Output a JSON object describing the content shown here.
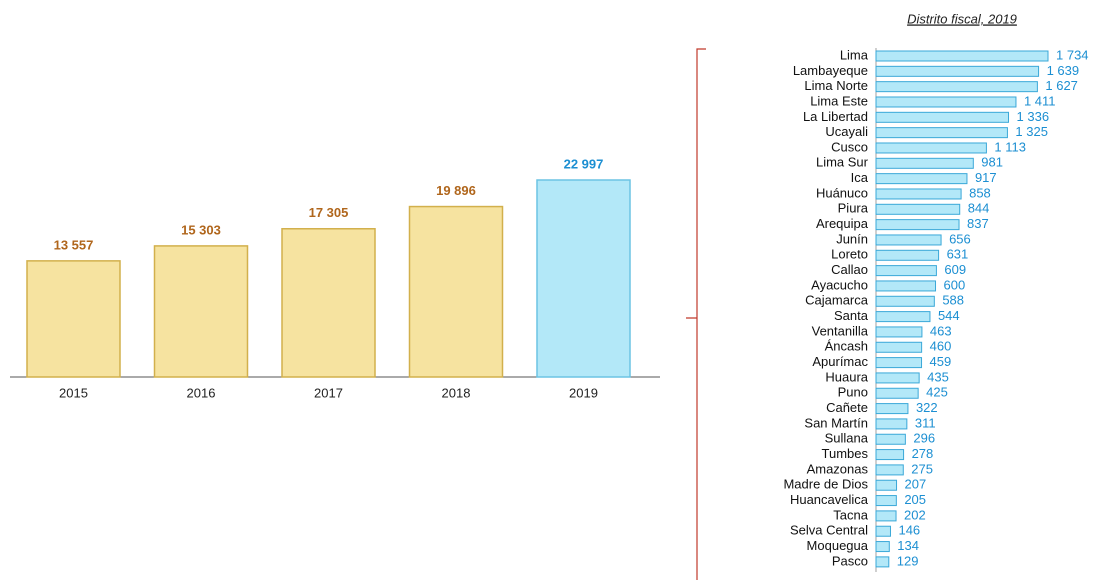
{
  "chart_data": [
    {
      "type": "bar",
      "categories": [
        "2015",
        "2016",
        "2017",
        "2018",
        "2019"
      ],
      "values": [
        13557,
        15303,
        17305,
        19896,
        22997
      ],
      "value_labels": [
        "13 557",
        "15 303",
        "17 305",
        "19 896",
        "22 997"
      ],
      "colors": [
        "#f6e3a0",
        "#f6e3a0",
        "#f6e3a0",
        "#f6e3a0",
        "#b3e8f8"
      ],
      "label_colors": [
        "#b0661c",
        "#b0661c",
        "#b0661c",
        "#b0661c",
        "#1c8fd2"
      ]
    },
    {
      "type": "hbar",
      "title": "Distrito fiscal, 2019",
      "categories": [
        "Lima",
        "Lambayeque",
        "Lima Norte",
        "Lima Este",
        "La Libertad",
        "Ucayali",
        "Cusco",
        "Lima Sur",
        "Ica",
        "Huánuco",
        "Piura",
        "Arequipa",
        "Junín",
        "Loreto",
        "Callao",
        "Ayacucho",
        "Cajamarca",
        "Santa",
        "Ventanilla",
        "Áncash",
        "Apurímac",
        "Huaura",
        "Puno",
        "Cañete",
        "San Martín",
        "Sullana",
        "Tumbes",
        "Amazonas",
        "Madre de Dios",
        "Huancavelica",
        "Tacna",
        "Selva Central",
        "Moquegua",
        "Pasco"
      ],
      "values": [
        1734,
        1639,
        1627,
        1411,
        1336,
        1325,
        1113,
        981,
        917,
        858,
        844,
        837,
        656,
        631,
        609,
        600,
        588,
        544,
        463,
        460,
        459,
        435,
        425,
        322,
        311,
        296,
        278,
        275,
        207,
        205,
        202,
        146,
        134,
        129
      ],
      "value_labels": [
        "1 734",
        "1 639",
        "1 627",
        "1 411",
        "1 336",
        "1 325",
        "1 113",
        "981",
        "917",
        "858",
        "844",
        "837",
        "656",
        "631",
        "609",
        "600",
        "588",
        "544",
        "463",
        "460",
        "459",
        "435",
        "425",
        "322",
        "311",
        "296",
        "278",
        "275",
        "207",
        "205",
        "202",
        "146",
        "134",
        "129"
      ],
      "color": "#b3e8f8"
    }
  ]
}
